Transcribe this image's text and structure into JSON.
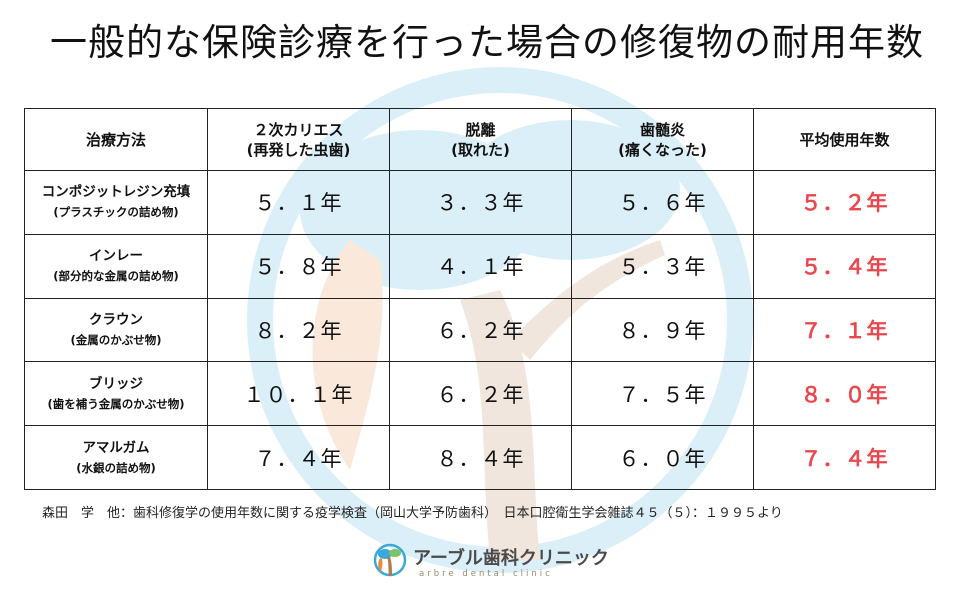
{
  "title": "一般的な保険診療を行った場合の修復物の耐用年数",
  "table": {
    "headers": [
      {
        "line1": "治療方法",
        "line2": ""
      },
      {
        "line1": "２次カリエス",
        "line2": "(再発した虫歯)"
      },
      {
        "line1": "脱離",
        "line2": "(取れた)"
      },
      {
        "line1": "歯髄炎",
        "line2": "(痛くなった)"
      },
      {
        "line1": "平均使用年数",
        "line2": ""
      }
    ],
    "rows": [
      {
        "name": "コンポジットレジン充填",
        "sub": "(プラスチックの詰め物)",
        "caries": "５．１年",
        "detach": "３．３年",
        "pulpitis": "５．６年",
        "average": "５．２年"
      },
      {
        "name": "インレー",
        "sub": "(部分的な金属の詰め物)",
        "caries": "５．８年",
        "detach": "４．１年",
        "pulpitis": "５．３年",
        "average": "５．４年"
      },
      {
        "name": "クラウン",
        "sub": "(金属のかぶせ物)",
        "caries": "８．２年",
        "detach": "６．２年",
        "pulpitis": "８．９年",
        "average": "７．１年"
      },
      {
        "name": "ブリッジ",
        "sub": "(歯を補う金属のかぶせ物)",
        "caries": "１０．１年",
        "detach": "６．２年",
        "pulpitis": "７．５年",
        "average": "８．０年"
      },
      {
        "name": "アマルガム",
        "sub": "(水銀の詰め物)",
        "caries": "７．４年",
        "detach": "８．４年",
        "pulpitis": "６．０年",
        "average": "７．４年"
      }
    ]
  },
  "citation": "森田　学　他：歯科修復学の使用年数に関する疫学検査（岡山大学予防歯科）　日本口腔衛生学会雑誌４５（５）：１９９５より",
  "logo": {
    "name": "アーブル歯科クリニック",
    "sub": "arbre dental clinic"
  },
  "colors": {
    "accent_red": "#e8484e",
    "border": "#222222",
    "watermark_blue": "#3aa8d8",
    "watermark_brown": "#b07a4a"
  },
  "icons": {
    "watermark": "tree-tooth-watermark-icon",
    "logo": "tree-logo-icon"
  }
}
